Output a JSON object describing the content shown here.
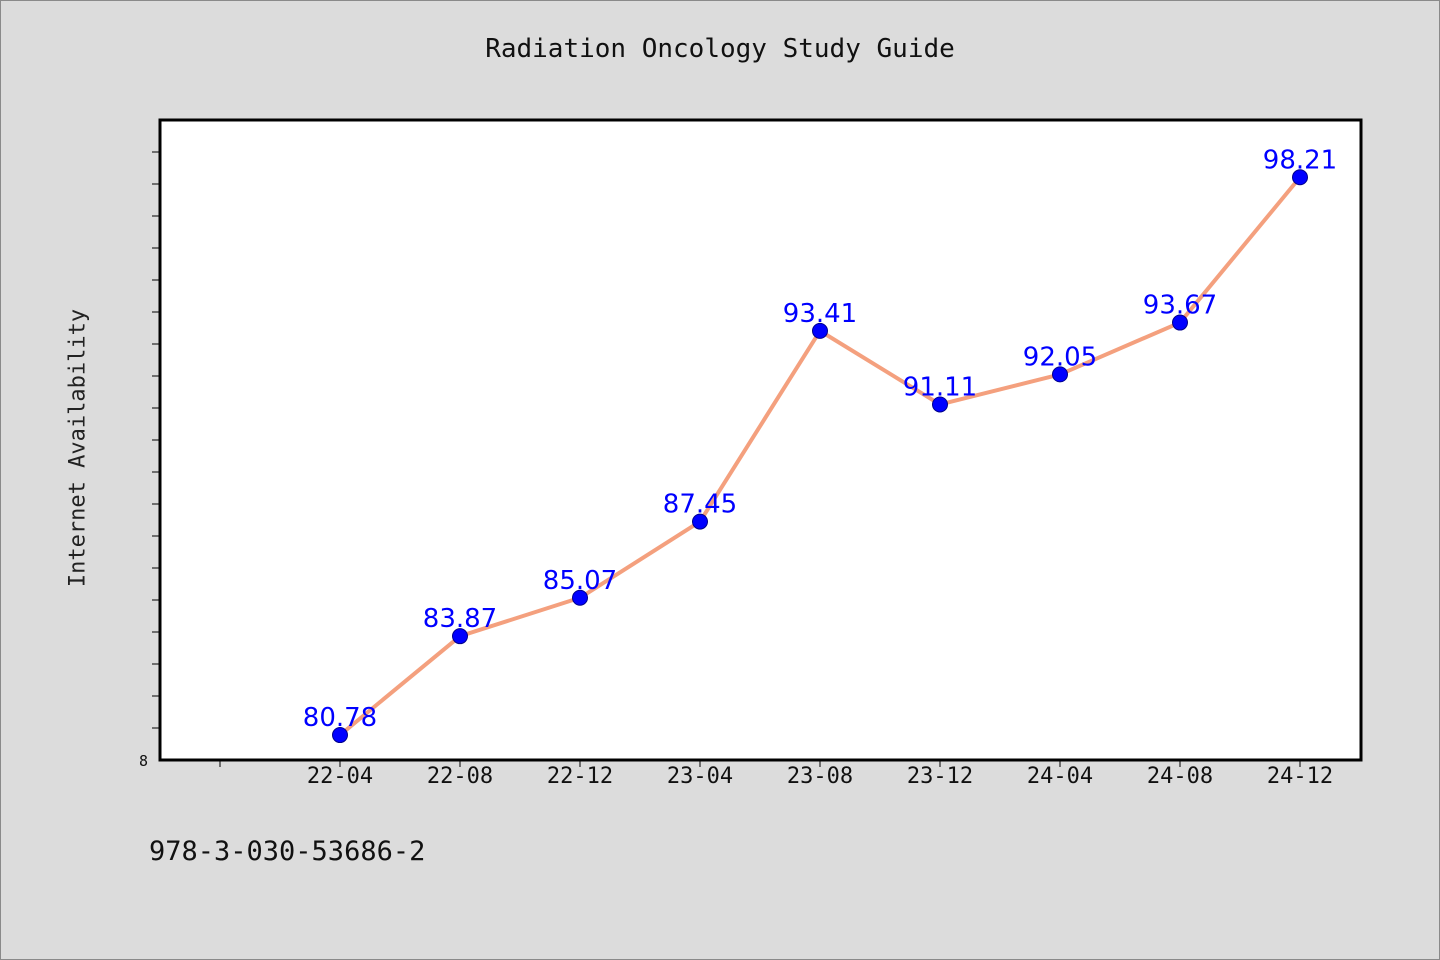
{
  "page": {
    "title": "Radiation Oncology Study Guide",
    "footer_code": "978-3-030-53686-2"
  },
  "chart_data": {
    "type": "line",
    "title": "Radiation Oncology Study Guide",
    "xlabel": "",
    "ylabel": "Internet Availability",
    "categories": [
      "22-04",
      "22-08",
      "22-12",
      "23-04",
      "23-08",
      "23-12",
      "24-04",
      "24-08",
      "24-12"
    ],
    "series": [
      {
        "values": [
          80.78,
          83.87,
          85.07,
          87.45,
          93.41,
          91.11,
          92.05,
          93.67,
          98.21
        ],
        "data_labels": [
          "80.78",
          "83.87",
          "85.07",
          "87.45",
          "93.41",
          "91.11",
          "92.05",
          "93.67",
          "98.21"
        ]
      }
    ],
    "ylim": [
      80,
      100
    ],
    "y_tick_label": "8",
    "grid": false,
    "line_color": "#f4a07e",
    "marker_color": "#0000ff",
    "label_color": "#0000ff",
    "plot_background": "#ffffff",
    "page_background": "#dcdcdc"
  }
}
